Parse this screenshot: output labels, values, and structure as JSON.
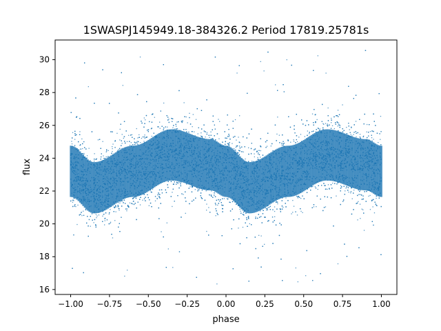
{
  "chart_data": {
    "type": "scatter",
    "title": "1SWASPJ145949.18-384326.2 Period 17819.25781s",
    "xlabel": "phase",
    "ylabel": "flux",
    "xlim": [
      -1.1,
      1.1
    ],
    "ylim": [
      15.7,
      31.2
    ],
    "xticks": [
      -1.0,
      -0.75,
      -0.5,
      -0.25,
      0.0,
      0.25,
      0.5,
      0.75,
      1.0
    ],
    "xtick_labels": [
      "−1.00",
      "−0.75",
      "−0.50",
      "−0.25",
      "0.00",
      "0.25",
      "0.50",
      "0.75",
      "1.00"
    ],
    "yticks": [
      16,
      18,
      20,
      22,
      24,
      26,
      28,
      30
    ],
    "ytick_labels": [
      "16",
      "18",
      "20",
      "22",
      "24",
      "26",
      "28",
      "30"
    ],
    "grid": false,
    "marker_color": "#1f77b4",
    "series": [
      {
        "x": [
          -1.0,
          -0.85,
          -0.6,
          -0.35,
          -0.1,
          0.0,
          0.15,
          0.4,
          0.65,
          0.9,
          1.0
        ],
        "y": [
          23.2,
          22.2,
          23.2,
          24.2,
          23.6,
          23.2,
          22.2,
          23.2,
          24.2,
          23.6,
          23.2
        ],
        "y_spread": 1.2,
        "y_range": [
          16.3,
          30.6
        ]
      }
    ]
  }
}
